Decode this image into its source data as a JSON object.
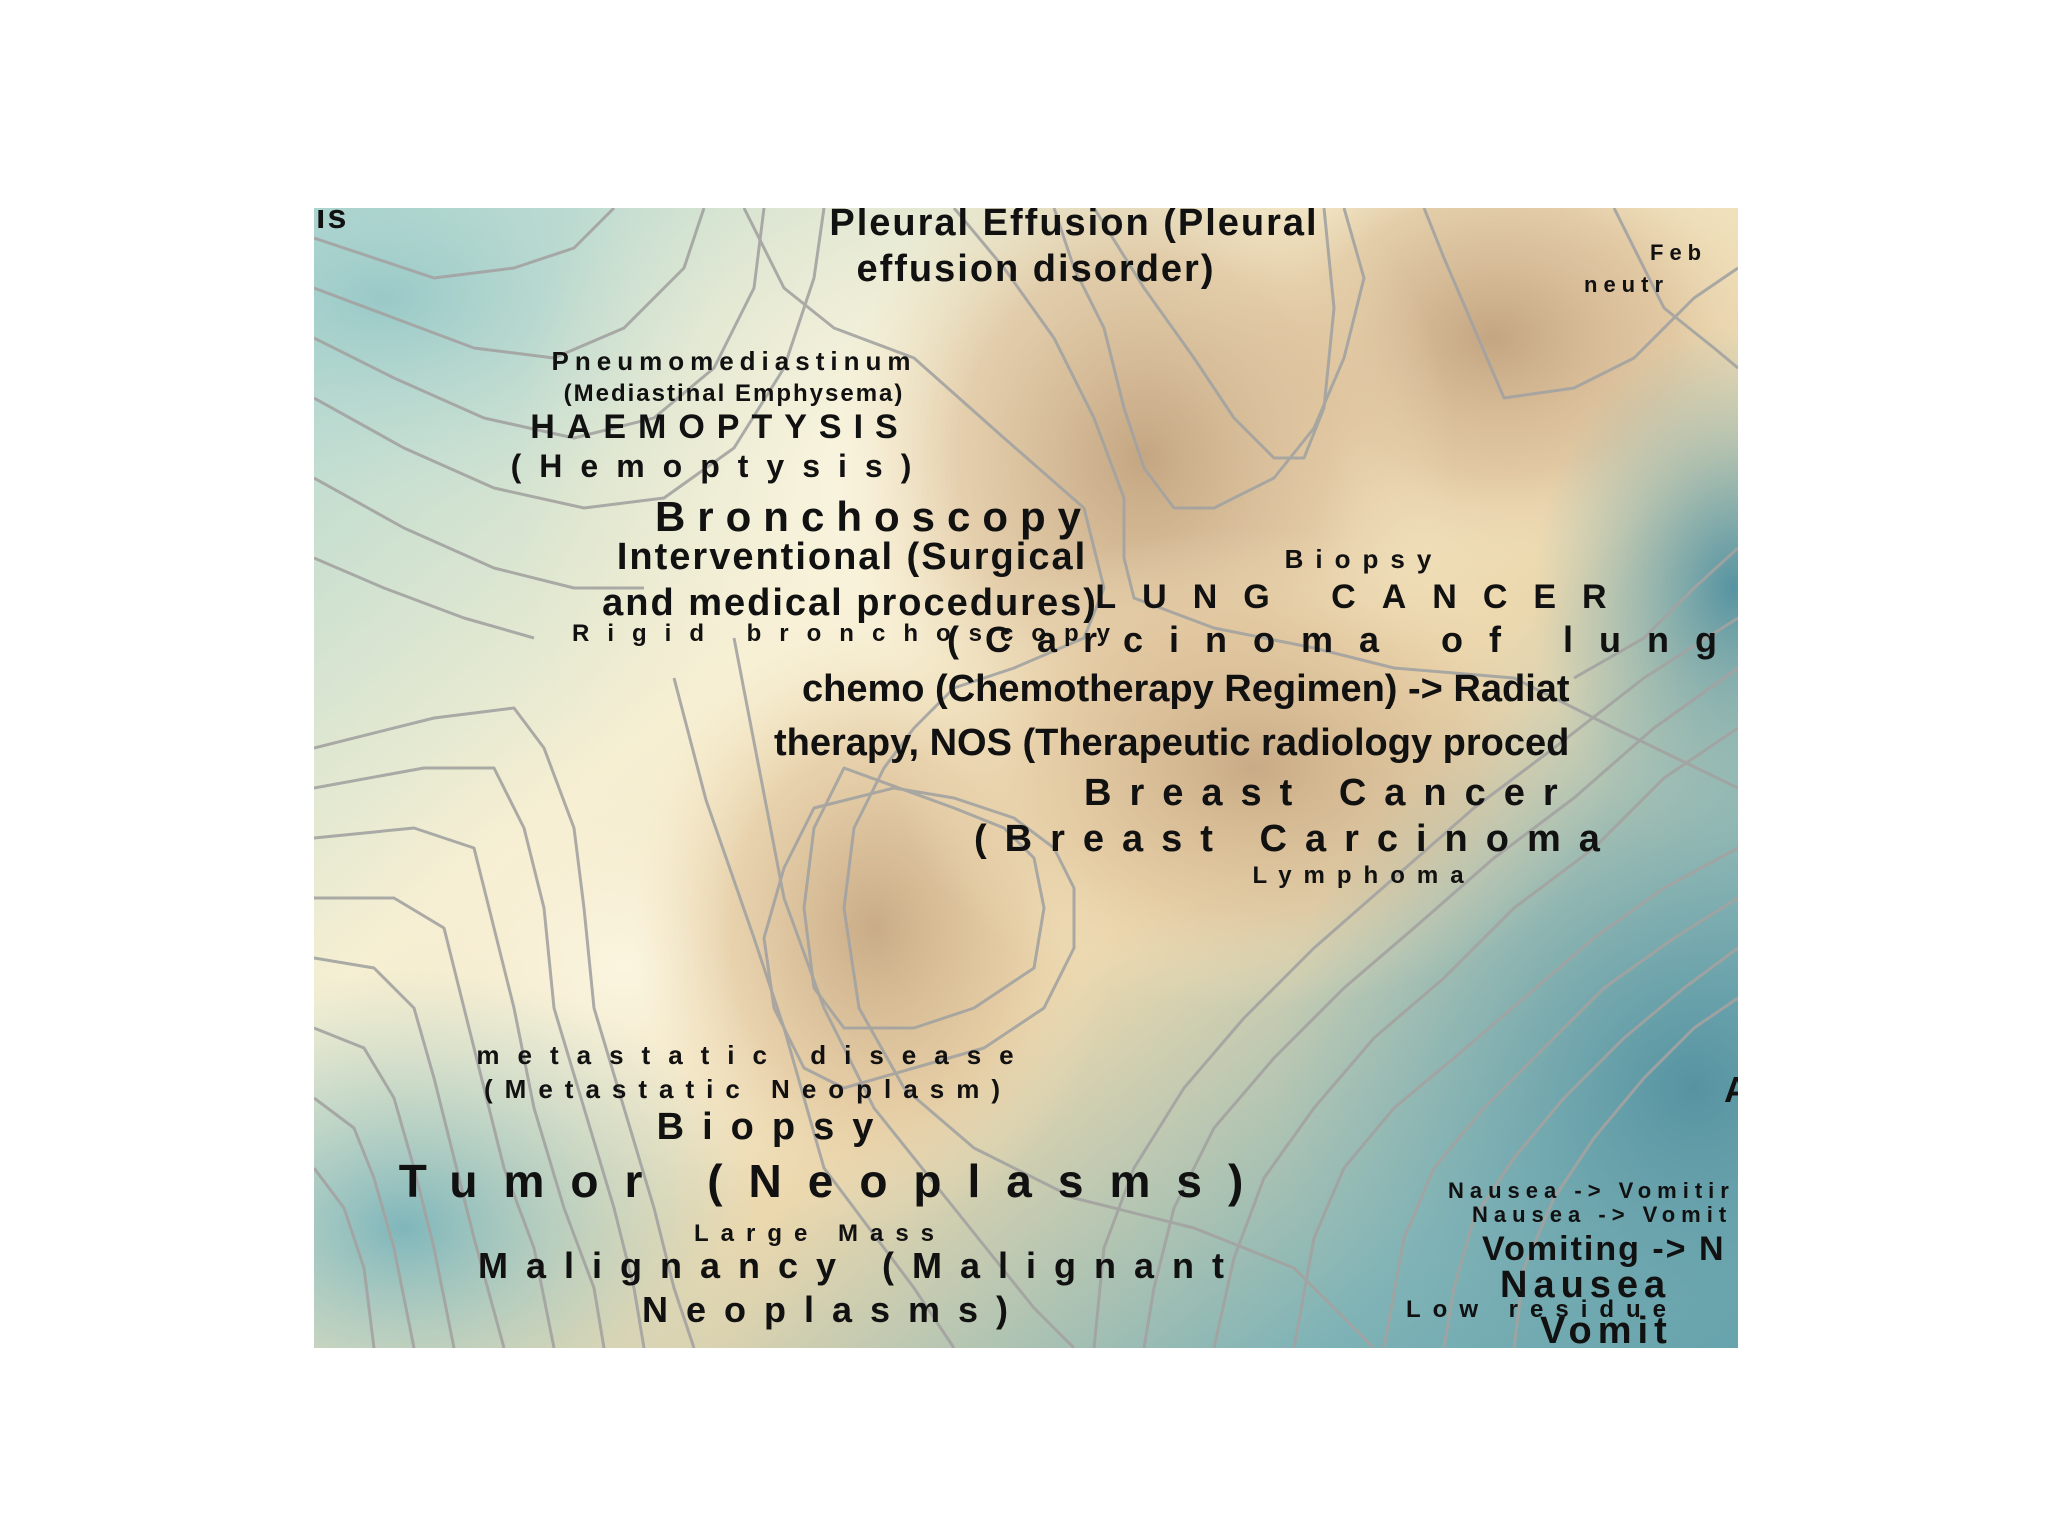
{
  "map": {
    "colors": {
      "peak": "#c9a882",
      "high": "#e8d2a8",
      "mid": "#f3e8c4",
      "low": "#b9d7cf",
      "sea": "#6fa8b0",
      "contour": "#a8a8a6"
    },
    "labels": {
      "top_left_fragment": "is",
      "pleural_1": "Pleural Effusion (Pleural",
      "pleural_2": "effusion disorder)",
      "feb_fragment": "Feb",
      "neutro_fragment": "neutr",
      "pneumo": "Pneumomediastinum",
      "pneumo_sub": "(Mediastinal Emphysema)",
      "haemoptysis": "HAEMOPTYSIS",
      "hemoptysis": "(Hemoptysis)",
      "bronchoscopy": "Bronchoscopy",
      "interventional_1": "Interventional (Surgical",
      "interventional_2": "and medical procedures)",
      "rigid": "Rigid bronchoscopy",
      "biopsy_small": "Biopsy",
      "lung_cancer": "LUNG CANCER",
      "carcinoma_lung": "(Carcinoma of lung)",
      "chemo_1": "chemo (Chemotherapy Regimen) -> Radiat",
      "chemo_2": "therapy, NOS (Therapeutic radiology proced",
      "breast_cancer": "Breast Cancer",
      "breast_carcinoma": "(Breast Carcinoma",
      "lymphoma": "Lymphoma",
      "metastatic": "metastatic disease",
      "metastatic_sub": "(Metastatic Neoplasm)",
      "biopsy_large": "Biopsy",
      "tumor": "Tumor (Neoplasms)",
      "large_mass": "Large Mass",
      "malignancy_1": "Malignancy (Malignant",
      "malignancy_2": "Neoplasms)",
      "right_fragment": "A",
      "nausea_vomit_1": "Nausea -> Vomitir",
      "nausea_vomit_2": "Nausea -> Vomit",
      "vomiting_arrow": "Vomiting -> N",
      "nausea_big": "Nausea",
      "low_residue": "Low residue",
      "vomit_big": "Vomit"
    }
  }
}
